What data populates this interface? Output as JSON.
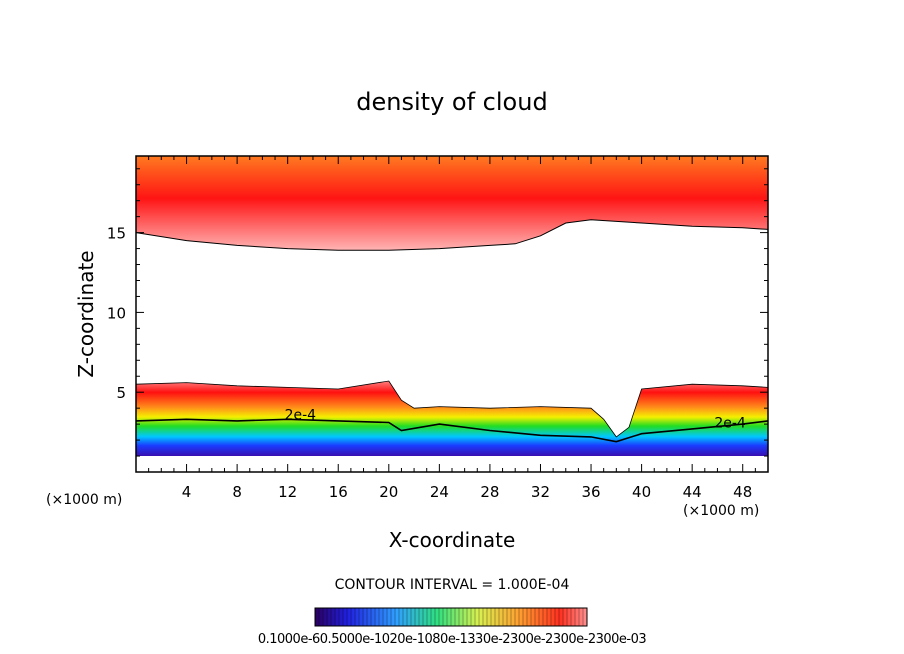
{
  "chart_data": {
    "type": "heatmap",
    "title": "density of cloud",
    "xlabel": "X-coordinate",
    "ylabel": "Z-coordinate",
    "x_unit": "(×1000 m)",
    "z_unit": "(×1000 m)",
    "xlim": [
      0,
      50
    ],
    "ylim": [
      0,
      19.8
    ],
    "x_ticks": [
      4,
      8,
      12,
      16,
      20,
      24,
      28,
      32,
      36,
      40,
      44,
      48
    ],
    "y_ticks": [
      5,
      10,
      15
    ],
    "contour_interval_text": "CONTOUR INTERVAL = 1.000E-04",
    "contour_labels": [
      {
        "text": "2e-4",
        "x": 13,
        "z": 3.3
      },
      {
        "text": "2e-4",
        "x": 47,
        "z": 2.8
      }
    ],
    "upper_layer_base": {
      "x": [
        0,
        4,
        8,
        12,
        16,
        20,
        24,
        28,
        30,
        32,
        34,
        36,
        40,
        44,
        48,
        50
      ],
      "z": [
        15.0,
        14.5,
        14.2,
        14.0,
        13.9,
        13.9,
        14.0,
        14.2,
        14.3,
        14.8,
        15.6,
        15.8,
        15.6,
        15.4,
        15.3,
        15.2
      ]
    },
    "lower_layer_top": {
      "x": [
        0,
        4,
        8,
        12,
        16,
        20,
        21,
        22,
        24,
        28,
        32,
        36,
        37,
        38,
        39,
        40,
        44,
        48,
        50
      ],
      "z": [
        5.5,
        5.6,
        5.4,
        5.3,
        5.2,
        5.7,
        4.5,
        4.0,
        4.1,
        4.0,
        4.1,
        4.0,
        3.3,
        2.2,
        2.8,
        5.2,
        5.5,
        5.4,
        5.3
      ]
    },
    "contour_2e4": {
      "x": [
        0,
        4,
        8,
        12,
        16,
        20,
        21,
        24,
        28,
        32,
        36,
        38,
        40,
        44,
        48,
        50
      ],
      "z": [
        3.2,
        3.3,
        3.2,
        3.3,
        3.2,
        3.1,
        2.6,
        3.0,
        2.6,
        2.3,
        2.2,
        1.9,
        2.4,
        2.7,
        3.0,
        3.2
      ]
    },
    "lower_layer_base_z": 1.0,
    "colorbar_labels": "0.1000e-60.5000e-1020e-1080e-1330e-2300e-2300e-2300e-03",
    "colors": {
      "low": "#3a0fb0",
      "blue": "#1a3cff",
      "cyan": "#00c8ff",
      "green": "#22dd22",
      "yellow": "#f5f000",
      "orange": "#ff8c1a",
      "red": "#ff1010",
      "pale": "#ff9aa0"
    }
  }
}
